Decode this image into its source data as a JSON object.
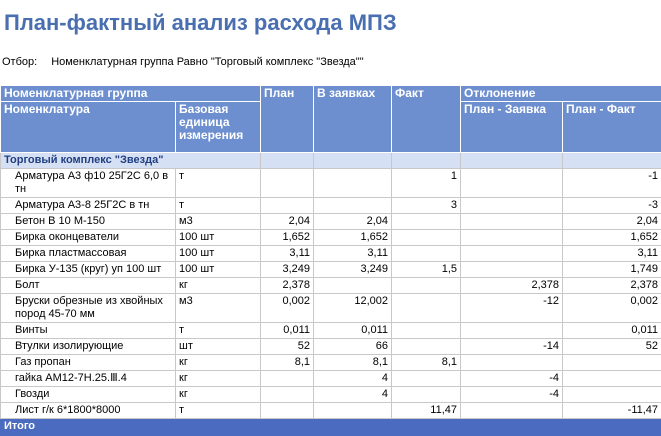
{
  "header": {
    "title": "План-фактный анализ расхода МПЗ",
    "filter_label": "Отбор:",
    "filter_value": "Номенклатурная группа Равно \"Торговый комплекс \"Звезда\"\""
  },
  "table": {
    "head_top": [
      "Номенклатурная группа",
      "План",
      "В заявках",
      "Факт",
      "Отклонение"
    ],
    "head_bottom": [
      "Номенклатура",
      "Базовая единица измерения",
      "План - Заявка",
      "План - Факт"
    ],
    "group": "Торговый комплекс \"Звезда\"",
    "rows": [
      [
        "Арматура А3 ф10 25Г2С 6,0 в тн",
        "т",
        null,
        null,
        "1",
        null,
        "-1"
      ],
      [
        "Арматура А3-8 25Г2С в тн",
        "т",
        null,
        null,
        "3",
        null,
        "-3"
      ],
      [
        "Бетон В 10  М-150",
        "м3",
        "2,04",
        "2,04",
        null,
        null,
        "2,04"
      ],
      [
        "Бирка оконцеватели",
        "100 шт",
        "1,652",
        "1,652",
        null,
        null,
        "1,652"
      ],
      [
        "Бирка пластмассовая",
        "100 шт",
        "3,11",
        "3,11",
        null,
        null,
        "3,11"
      ],
      [
        "Бирка У-135 (круг) уп 100 шт",
        "100 шт",
        "3,249",
        "3,249",
        "1,5",
        null,
        "1,749"
      ],
      [
        "Болт",
        "кг",
        "2,378",
        null,
        null,
        "2,378",
        "2,378"
      ],
      [
        "Бруски обрезные из хвойных пород 45-70 мм",
        "м3",
        "0,002",
        "12,002",
        null,
        "-12",
        "0,002"
      ],
      [
        "Винты",
        "т",
        "0,011",
        "0,011",
        null,
        null,
        "0,011"
      ],
      [
        "Втулки изолирующие",
        "шт",
        "52",
        "66",
        null,
        "-14",
        "52"
      ],
      [
        "Газ пропан",
        "кг",
        "8,1",
        "8,1",
        "8,1",
        null,
        null
      ],
      [
        "гайка АМ12-7Н.25.Ⅲ.4",
        "кг",
        null,
        "4",
        null,
        "-4",
        null
      ],
      [
        "Гвозди",
        "кг",
        null,
        "4",
        null,
        "-4",
        null
      ],
      [
        "Лист г/к 6*1800*8000",
        "т",
        null,
        null,
        "11,47",
        null,
        "-11,47"
      ]
    ],
    "total": "Итого"
  }
}
